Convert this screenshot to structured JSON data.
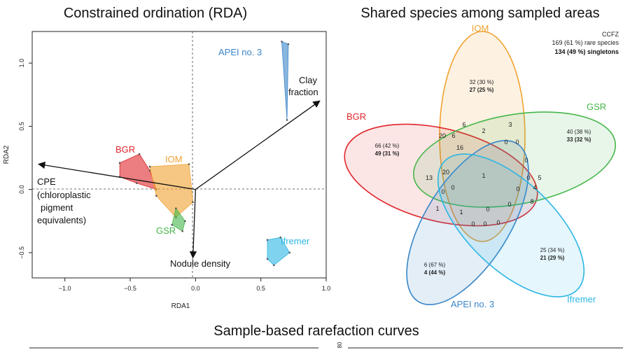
{
  "rda": {
    "title": "Constrained ordination (RDA)",
    "xlabel": "RDA1",
    "ylabel": "RDA2",
    "x_ticks": [
      "−1.0",
      "−0.5",
      "0.0",
      "0.5",
      "1.0"
    ],
    "y_ticks": [
      "1.0",
      "0.5",
      "0.0",
      "−0.5"
    ],
    "group_labels": [
      "APEI no. 3",
      "BGR",
      "IOM",
      "GSR",
      "Ifremer"
    ],
    "arrow_labels": {
      "clay_1": "Clay",
      "clay_2": "fraction",
      "cpe_1": "CPE",
      "cpe_2": "(chloroplastic",
      "cpe_3": "pigment",
      "cpe_4": "equivalents)",
      "nodule": "Nodule density"
    },
    "colors": {
      "APEI no. 3": "#3a86c8",
      "BGR": "#e0262b",
      "IOM": "#f0a231",
      "GSR": "#45b649",
      "Ifremer": "#2bb6e3"
    }
  },
  "venn": {
    "title": "Shared species among sampled areas",
    "labels": [
      "IOM",
      "BGR",
      "GSR",
      "APEI no. 3",
      "Ifremer"
    ],
    "summary": {
      "line1": "CCFZ",
      "line2": "169 (61 %) rare species",
      "line3": "134 (49 %) singletons"
    },
    "unique": {
      "IOM": [
        "32 (30 %)",
        "27 (25 %)"
      ],
      "BGR": [
        "66 (42 %)",
        "49 (31 %)"
      ],
      "GSR": [
        "40 (38 %)",
        "33 (32 %)"
      ],
      "APEI": [
        "6 (67 %)",
        "4 (44 %)"
      ],
      "Ifremer": [
        "25 (34 %)",
        "21 (29 %)"
      ]
    },
    "overlaps": [
      "6",
      "3",
      "20",
      "6",
      "2",
      "16",
      "0",
      "0",
      "13",
      "20",
      "1",
      "0",
      "5",
      "0",
      "4",
      "0",
      "8",
      "1",
      "1",
      "0",
      "0",
      "0",
      "0",
      "0",
      "0",
      "0"
    ]
  },
  "bottom": {
    "title": "Sample-based rarefaction curves",
    "tick": "80"
  },
  "chart_data": [
    {
      "type": "scatter",
      "title": "Constrained ordination (RDA)",
      "xlabel": "RDA1",
      "ylabel": "RDA2",
      "xlim": [
        -1.25,
        1.0
      ],
      "ylim": [
        -0.7,
        1.25
      ],
      "grid": false,
      "series": [
        {
          "name": "APEI no. 3",
          "values": [
            [
              0.66,
              1.17
            ],
            [
              0.71,
              1.15
            ],
            [
              0.7,
              0.55
            ]
          ]
        },
        {
          "name": "BGR",
          "values": [
            [
              -0.58,
              0.21
            ],
            [
              -0.43,
              0.28
            ],
            [
              -0.35,
              0.15
            ],
            [
              -0.3,
              0.0
            ],
            [
              -0.45,
              0.05
            ],
            [
              -0.58,
              0.1
            ]
          ]
        },
        {
          "name": "IOM",
          "values": [
            [
              -0.35,
              0.18
            ],
            [
              -0.05,
              0.2
            ],
            [
              -0.02,
              -0.1
            ],
            [
              -0.15,
              -0.22
            ],
            [
              -0.3,
              -0.05
            ]
          ]
        },
        {
          "name": "GSR",
          "values": [
            [
              -0.15,
              -0.15
            ],
            [
              -0.08,
              -0.25
            ],
            [
              -0.1,
              -0.33
            ],
            [
              -0.18,
              -0.28
            ]
          ]
        },
        {
          "name": "Ifremer",
          "values": [
            [
              0.55,
              -0.4
            ],
            [
              0.65,
              -0.38
            ],
            [
              0.72,
              -0.5
            ],
            [
              0.6,
              -0.6
            ],
            [
              0.55,
              -0.55
            ]
          ]
        }
      ],
      "arrows": [
        {
          "label": "Clay fraction",
          "x": 0.95,
          "y": 0.7
        },
        {
          "label": "CPE (chloroplastic pigment equivalents)",
          "x": -1.2,
          "y": 0.2
        },
        {
          "label": "Nodule density",
          "x": -0.02,
          "y": -0.54
        }
      ]
    },
    {
      "type": "table",
      "title": "Shared species among sampled areas",
      "sets": [
        "IOM",
        "BGR",
        "GSR",
        "APEI no. 3",
        "Ifremer"
      ],
      "unique_species": {
        "IOM": 32,
        "BGR": 66,
        "GSR": 40,
        "APEI no. 3": 6,
        "Ifremer": 25
      },
      "unique_singletons": {
        "IOM": 27,
        "BGR": 49,
        "GSR": 33,
        "APEI no. 3": 4,
        "Ifremer": 21
      },
      "all_shared": 1
    }
  ]
}
